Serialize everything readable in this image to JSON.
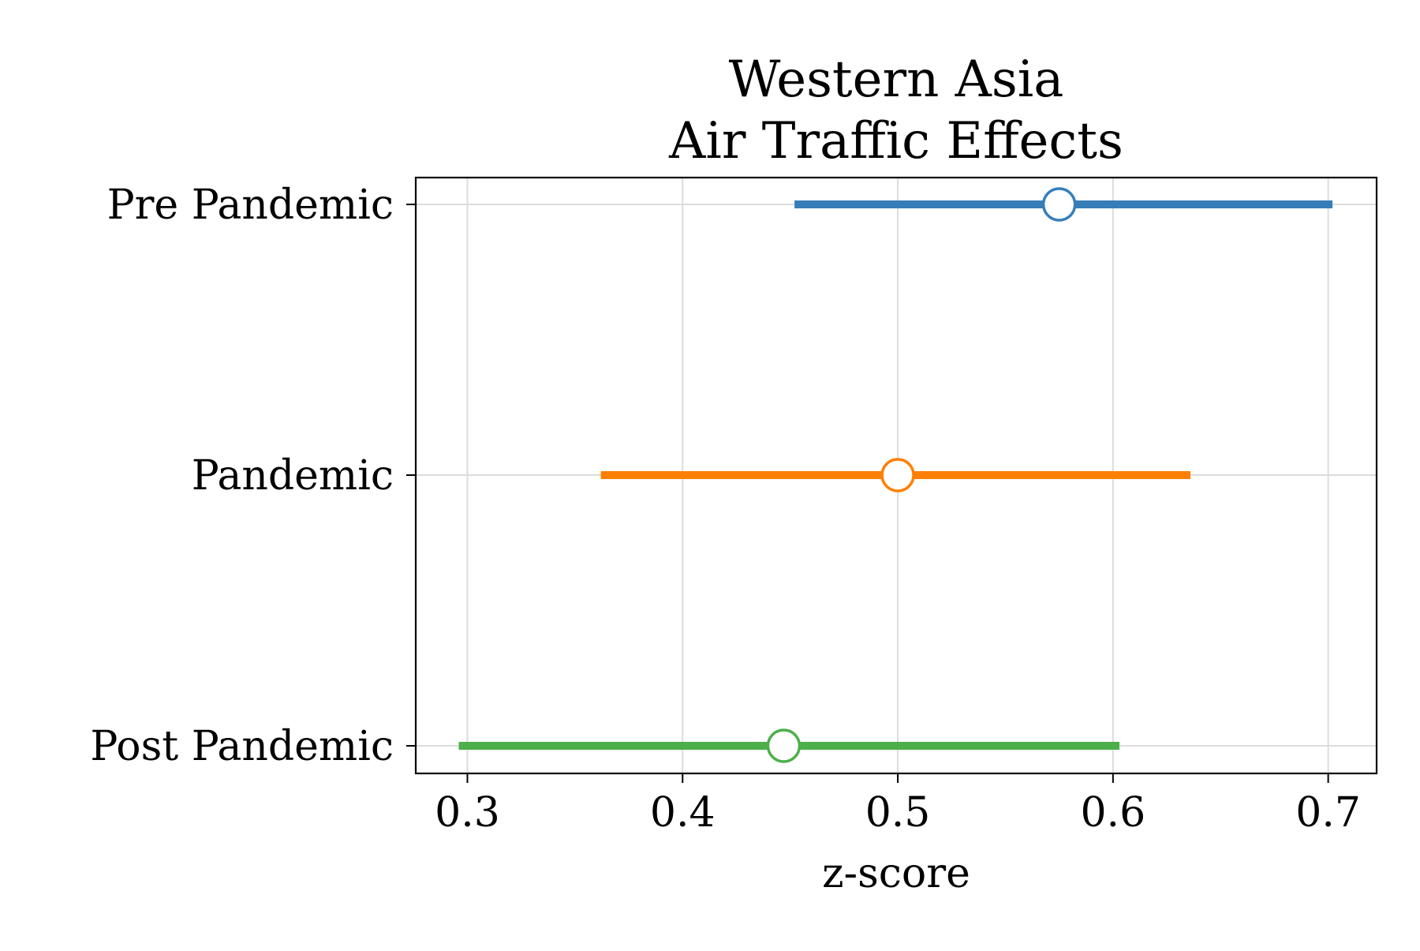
{
  "chart_data": {
    "type": "errorbar",
    "title": "Western Asia\nAir Traffic Effects",
    "title_lines": [
      "Western Asia",
      "Air Traffic Effects"
    ],
    "xlabel": "z-score",
    "ylabel": "",
    "xlim": [
      0.276,
      0.7225
    ],
    "xticks": [
      0.3,
      0.4,
      0.5,
      0.6,
      0.7
    ],
    "xtick_labels": [
      "0.3",
      "0.4",
      "0.5",
      "0.6",
      "0.7"
    ],
    "categories": [
      "Pre Pandemic",
      "Pandemic",
      "Post Pandemic"
    ],
    "grid": true,
    "legend": "none",
    "series": [
      {
        "category": "Pre Pandemic",
        "estimate": 0.575,
        "lower": 0.452,
        "upper": 0.702,
        "color": "#377eb8"
      },
      {
        "category": "Pandemic",
        "estimate": 0.5,
        "lower": 0.362,
        "upper": 0.636,
        "color": "#ff7f00"
      },
      {
        "category": "Post Pandemic",
        "estimate": 0.447,
        "lower": 0.296,
        "upper": 0.603,
        "color": "#4daf4a"
      }
    ]
  }
}
